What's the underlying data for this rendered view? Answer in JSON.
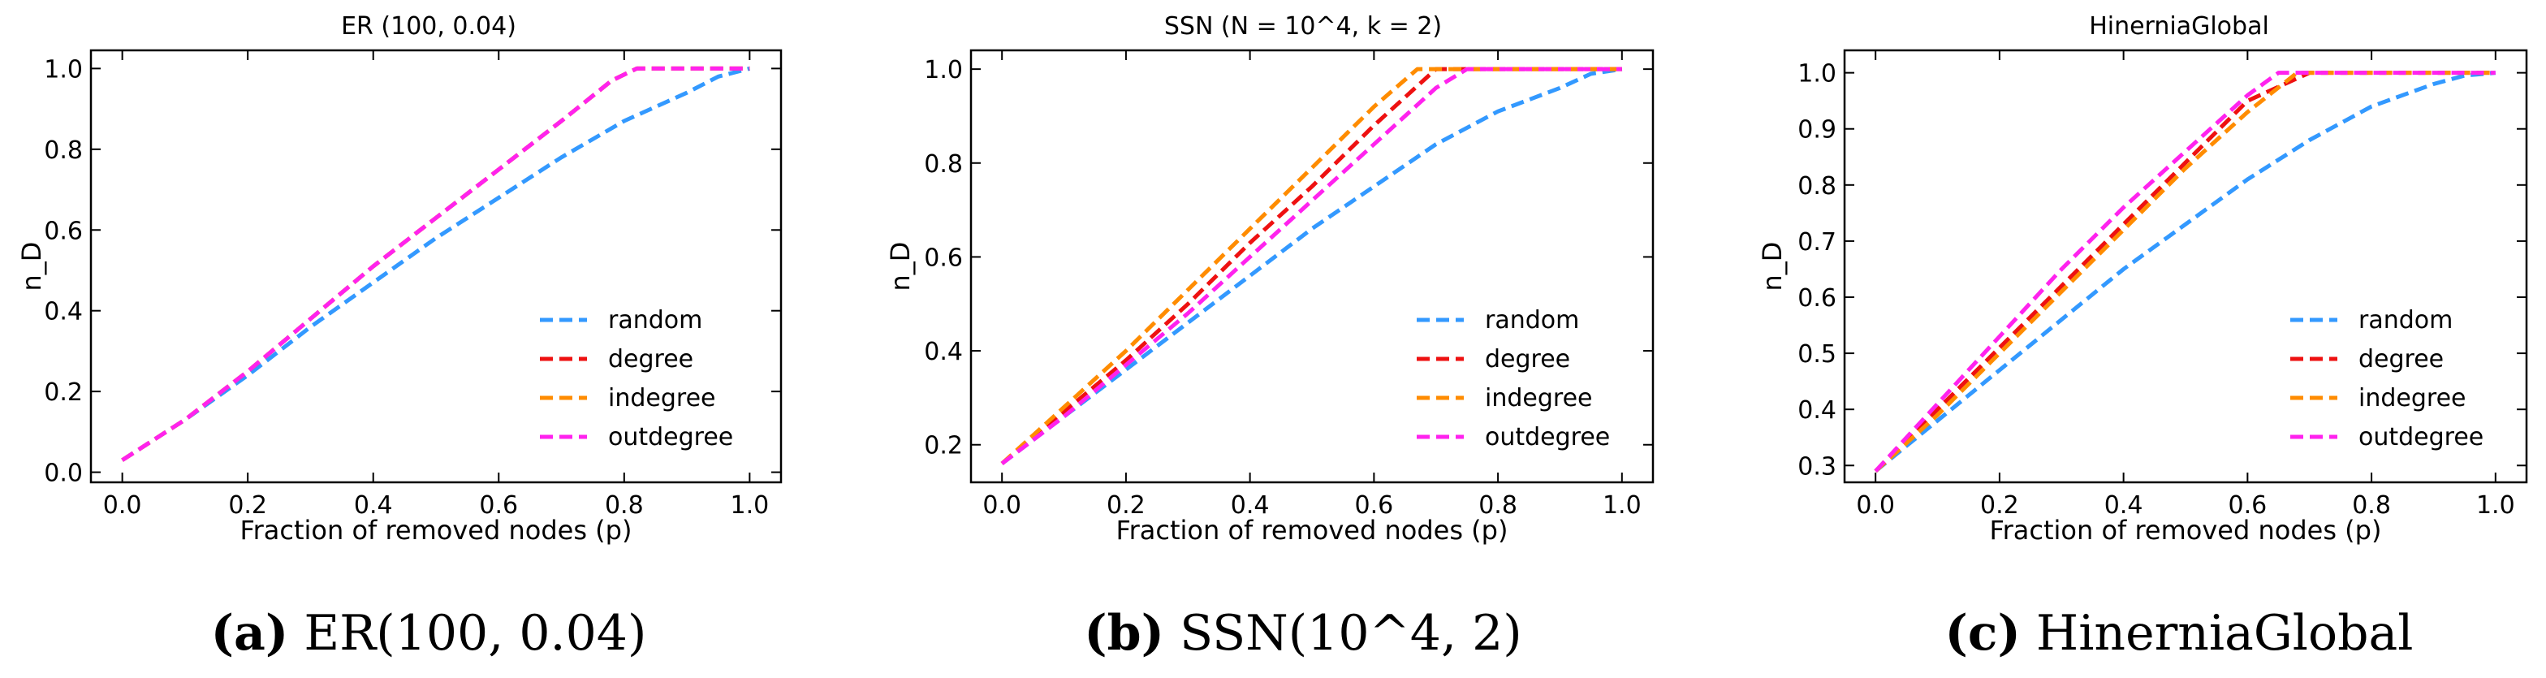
{
  "chart_data": [
    {
      "type": "line",
      "title": "ER (100, 0.04)",
      "xlabel": "Fraction of removed nodes (p)",
      "ylabel": "n_D",
      "xlim": [
        -0.05,
        1.05
      ],
      "ylim": [
        -0.025,
        1.045
      ],
      "xticks": [
        0.0,
        0.2,
        0.4,
        0.6,
        0.8,
        1.0
      ],
      "yticks": [
        0.0,
        0.2,
        0.4,
        0.6,
        0.8,
        1.0
      ],
      "xtick_labels": [
        "0.0",
        "0.2",
        "0.4",
        "0.6",
        "0.8",
        "1.0"
      ],
      "ytick_labels": [
        "0.0",
        "0.2",
        "0.4",
        "0.6",
        "0.8",
        "1.0"
      ],
      "legend_position": "lower-right",
      "caption": {
        "label": "(a)",
        "text": "ER(100, 0.04)"
      },
      "series": [
        {
          "name": "random",
          "color": "#3399ff",
          "x": [
            0,
            0.1,
            0.2,
            0.3,
            0.4,
            0.5,
            0.6,
            0.7,
            0.8,
            0.9,
            0.95,
            1.0
          ],
          "y": [
            0.03,
            0.13,
            0.24,
            0.36,
            0.47,
            0.58,
            0.68,
            0.78,
            0.87,
            0.94,
            0.98,
            1.0
          ]
        },
        {
          "name": "degree",
          "color": "#ee1111",
          "x": [
            0,
            0.1,
            0.2,
            0.3,
            0.4,
            0.5,
            0.6,
            0.7,
            0.78,
            0.82,
            0.9,
            1.0
          ],
          "y": [
            0.03,
            0.13,
            0.25,
            0.38,
            0.51,
            0.63,
            0.75,
            0.87,
            0.97,
            1.0,
            1.0,
            1.0
          ]
        },
        {
          "name": "indegree",
          "color": "#ff8c00",
          "x": [
            0,
            0.1,
            0.2,
            0.3,
            0.4,
            0.5,
            0.6,
            0.7,
            0.78,
            0.82,
            0.9,
            1.0
          ],
          "y": [
            0.03,
            0.13,
            0.25,
            0.38,
            0.51,
            0.63,
            0.75,
            0.87,
            0.97,
            1.0,
            1.0,
            1.0
          ]
        },
        {
          "name": "outdegree",
          "color": "#ff22ee",
          "x": [
            0,
            0.1,
            0.2,
            0.3,
            0.4,
            0.5,
            0.6,
            0.7,
            0.78,
            0.82,
            0.9,
            1.0
          ],
          "y": [
            0.03,
            0.13,
            0.25,
            0.38,
            0.51,
            0.63,
            0.75,
            0.87,
            0.97,
            1.0,
            1.0,
            1.0
          ]
        }
      ]
    },
    {
      "type": "line",
      "title": "SSN (N = 10^4, k = 2)",
      "xlabel": "Fraction of removed nodes (p)",
      "ylabel": "n_D",
      "xlim": [
        -0.05,
        1.05
      ],
      "ylim": [
        0.12,
        1.04
      ],
      "xticks": [
        0.0,
        0.2,
        0.4,
        0.6,
        0.8,
        1.0
      ],
      "yticks": [
        0.2,
        0.4,
        0.6,
        0.8,
        1.0
      ],
      "xtick_labels": [
        "0.0",
        "0.2",
        "0.4",
        "0.6",
        "0.8",
        "1.0"
      ],
      "ytick_labels": [
        "0.2",
        "0.4",
        "0.6",
        "0.8",
        "1.0"
      ],
      "legend_position": "lower-right",
      "caption": {
        "label": "(b)",
        "text": "SSN(10^4, 2)"
      },
      "series": [
        {
          "name": "random",
          "color": "#3399ff",
          "x": [
            0,
            0.1,
            0.2,
            0.3,
            0.4,
            0.5,
            0.6,
            0.7,
            0.8,
            0.9,
            0.95,
            1.0
          ],
          "y": [
            0.16,
            0.26,
            0.36,
            0.46,
            0.56,
            0.66,
            0.75,
            0.84,
            0.91,
            0.96,
            0.99,
            1.0
          ]
        },
        {
          "name": "degree",
          "color": "#ee1111",
          "x": [
            0,
            0.1,
            0.2,
            0.3,
            0.4,
            0.5,
            0.6,
            0.7,
            0.8,
            1.0
          ],
          "y": [
            0.16,
            0.27,
            0.38,
            0.5,
            0.63,
            0.75,
            0.88,
            1.0,
            1.0,
            1.0
          ]
        },
        {
          "name": "indegree",
          "color": "#ff8c00",
          "x": [
            0,
            0.1,
            0.2,
            0.3,
            0.4,
            0.5,
            0.6,
            0.67,
            0.8,
            1.0
          ],
          "y": [
            0.16,
            0.28,
            0.4,
            0.53,
            0.66,
            0.79,
            0.92,
            1.0,
            1.0,
            1.0
          ]
        },
        {
          "name": "outdegree",
          "color": "#ff22ee",
          "x": [
            0,
            0.1,
            0.2,
            0.3,
            0.4,
            0.5,
            0.6,
            0.7,
            0.75,
            0.8,
            1.0
          ],
          "y": [
            0.16,
            0.26,
            0.37,
            0.48,
            0.6,
            0.72,
            0.84,
            0.96,
            1.0,
            1.0,
            1.0
          ]
        }
      ]
    },
    {
      "type": "line",
      "title": "HinerniaGlobal",
      "xlabel": "Fraction of removed nodes (p)",
      "ylabel": "n_D",
      "xlim": [
        -0.05,
        1.05
      ],
      "ylim": [
        0.27,
        1.04
      ],
      "xticks": [
        0.0,
        0.2,
        0.4,
        0.6,
        0.8,
        1.0
      ],
      "yticks": [
        0.3,
        0.4,
        0.5,
        0.6,
        0.7,
        0.8,
        0.9,
        1.0
      ],
      "xtick_labels": [
        "0.0",
        "0.2",
        "0.4",
        "0.6",
        "0.8",
        "1.0"
      ],
      "ytick_labels": [
        "0.3",
        "0.4",
        "0.5",
        "0.6",
        "0.7",
        "0.8",
        "0.9",
        "1.0"
      ],
      "legend_position": "lower-right",
      "caption": {
        "label": "(c)",
        "text": "HinerniaGlobal"
      },
      "series": [
        {
          "name": "random",
          "color": "#3399ff",
          "x": [
            0,
            0.1,
            0.2,
            0.3,
            0.4,
            0.5,
            0.6,
            0.7,
            0.8,
            0.9,
            0.95,
            1.0
          ],
          "y": [
            0.29,
            0.38,
            0.47,
            0.56,
            0.65,
            0.73,
            0.81,
            0.88,
            0.94,
            0.98,
            0.995,
            1.0
          ]
        },
        {
          "name": "degree",
          "color": "#ee1111",
          "x": [
            0,
            0.1,
            0.2,
            0.3,
            0.4,
            0.5,
            0.6,
            0.7,
            0.8,
            1.0
          ],
          "y": [
            0.29,
            0.4,
            0.51,
            0.62,
            0.73,
            0.84,
            0.95,
            1.0,
            1.0,
            1.0
          ]
        },
        {
          "name": "indegree",
          "color": "#ff8c00",
          "x": [
            0,
            0.1,
            0.2,
            0.3,
            0.4,
            0.5,
            0.6,
            0.68,
            0.8,
            1.0
          ],
          "y": [
            0.29,
            0.39,
            0.5,
            0.61,
            0.72,
            0.83,
            0.93,
            1.0,
            1.0,
            1.0
          ]
        },
        {
          "name": "outdegree",
          "color": "#ff22ee",
          "x": [
            0,
            0.1,
            0.2,
            0.3,
            0.4,
            0.5,
            0.6,
            0.65,
            0.8,
            1.0
          ],
          "y": [
            0.29,
            0.41,
            0.53,
            0.65,
            0.76,
            0.86,
            0.96,
            1.0,
            1.0,
            1.0
          ]
        }
      ]
    }
  ]
}
